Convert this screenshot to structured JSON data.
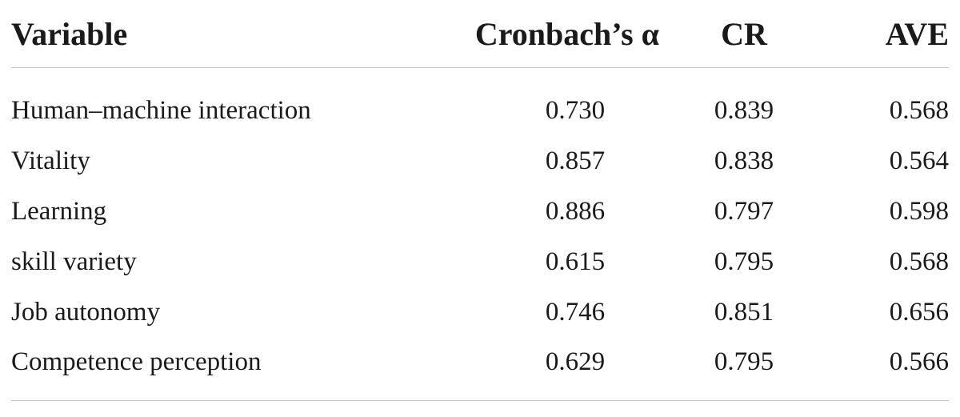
{
  "table": {
    "headers": {
      "variable": "Variable",
      "alpha": "Cronbach’s α",
      "cr": "CR",
      "ave": "AVE"
    },
    "rows": [
      {
        "variable": "Human–machine interaction",
        "alpha": "0.730",
        "cr": "0.839",
        "ave": "0.568"
      },
      {
        "variable": "Vitality",
        "alpha": "0.857",
        "cr": "0.838",
        "ave": "0.564"
      },
      {
        "variable": "Learning",
        "alpha": "0.886",
        "cr": "0.797",
        "ave": "0.598"
      },
      {
        "variable": "skill variety",
        "alpha": "0.615",
        "cr": "0.795",
        "ave": "0.568"
      },
      {
        "variable": "Job autonomy",
        "alpha": "0.746",
        "cr": "0.851",
        "ave": "0.656"
      },
      {
        "variable": "Competence perception",
        "alpha": "0.629",
        "cr": "0.795",
        "ave": "0.566"
      }
    ]
  }
}
